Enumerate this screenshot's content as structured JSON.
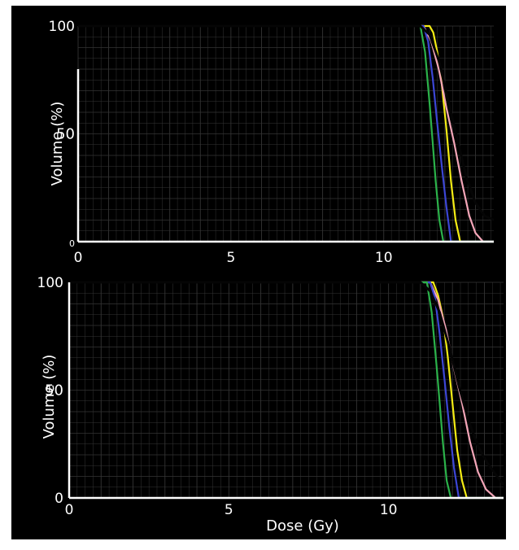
{
  "chart_data": [
    {
      "type": "line",
      "panel": "top",
      "xlabel": "",
      "ylabel": "Volume (%)",
      "xlim": [
        0,
        13.6
      ],
      "ylim": [
        0,
        100
      ],
      "xticks": [
        "0",
        "5",
        "10"
      ],
      "yticks": [
        "0",
        "50",
        "100"
      ],
      "grid": true,
      "colors": {
        "green": "#2bb24a",
        "blue": "#3c46d6",
        "yellow": "#f4ec14",
        "pink": "#f4a6b8",
        "black": "#050505",
        "grid": "#343434",
        "axis": "#ffffff"
      },
      "series": [
        {
          "color": "#f4ec14",
          "x": [
            0,
            11.5,
            11.62,
            11.75,
            11.9,
            12.05,
            12.2,
            12.35,
            12.5,
            13.6
          ],
          "y": [
            100,
            100,
            97,
            88,
            73,
            52,
            28,
            10,
            0,
            0
          ]
        },
        {
          "color": "#f4a6b8",
          "x": [
            0,
            11.3,
            11.55,
            11.8,
            12.05,
            12.3,
            12.55,
            12.8,
            13.0,
            13.25,
            13.6
          ],
          "y": [
            100,
            100,
            93,
            80,
            62,
            46,
            28,
            12,
            4,
            0,
            0
          ]
        },
        {
          "color": "#3c46d6",
          "x": [
            0,
            11.3,
            11.45,
            11.6,
            11.75,
            11.9,
            12.05,
            12.2,
            13.6
          ],
          "y": [
            100,
            100,
            93,
            76,
            55,
            35,
            16,
            0,
            0
          ]
        },
        {
          "color": "#2bb24a",
          "x": [
            0,
            11.2,
            11.35,
            11.5,
            11.6,
            11.7,
            11.82,
            11.95,
            13.6
          ],
          "y": [
            100,
            100,
            88,
            64,
            46,
            28,
            10,
            0,
            0
          ]
        },
        {
          "color": "#050505",
          "x": [
            0,
            11.2,
            11.5,
            11.8,
            12.1,
            12.4,
            12.7,
            13.0,
            13.3,
            13.6
          ],
          "y": [
            100,
            100,
            96,
            84,
            66,
            48,
            30,
            18,
            12,
            10
          ]
        }
      ]
    },
    {
      "type": "line",
      "panel": "bottom",
      "xlabel": "Dose (Gy)",
      "ylabel": "Volume (%)",
      "xlim": [
        0,
        13.6
      ],
      "ylim": [
        0,
        100
      ],
      "xticks": [
        "0",
        "5",
        "10"
      ],
      "yticks": [
        "0",
        "50",
        "100"
      ],
      "grid": true,
      "colors": {
        "green": "#2bb24a",
        "blue": "#3c46d6",
        "yellow": "#f4ec14",
        "pink": "#f4a6b8",
        "black": "#050505",
        "grid": "#343434",
        "axis": "#ffffff"
      },
      "series": [
        {
          "color": "#f4ec14",
          "x": [
            0,
            11.4,
            11.55,
            11.7,
            11.85,
            12.0,
            12.15,
            12.3,
            12.45,
            13.6
          ],
          "y": [
            100,
            100,
            94,
            84,
            66,
            44,
            22,
            8,
            0,
            0
          ]
        },
        {
          "color": "#f4a6b8",
          "x": [
            0,
            11.3,
            11.55,
            11.8,
            12.05,
            12.3,
            12.55,
            12.8,
            13.05,
            13.35,
            13.6
          ],
          "y": [
            100,
            100,
            92,
            78,
            60,
            44,
            26,
            12,
            4,
            0,
            0
          ]
        },
        {
          "color": "#3c46d6",
          "x": [
            0,
            11.3,
            11.45,
            11.6,
            11.75,
            11.9,
            12.05,
            12.2,
            13.6
          ],
          "y": [
            100,
            100,
            93,
            76,
            55,
            33,
            14,
            0,
            0
          ]
        },
        {
          "color": "#2bb24a",
          "x": [
            0,
            11.2,
            11.35,
            11.5,
            11.6,
            11.7,
            11.82,
            11.95,
            13.6
          ],
          "y": [
            100,
            100,
            86,
            62,
            44,
            26,
            8,
            0,
            0
          ]
        },
        {
          "color": "#050505",
          "x": [
            0,
            11.0,
            11.3,
            11.6,
            11.9,
            12.2,
            12.5,
            12.8,
            13.1,
            13.4,
            13.6
          ],
          "y": [
            100,
            100,
            96,
            86,
            70,
            52,
            36,
            24,
            16,
            10,
            6
          ]
        }
      ]
    }
  ]
}
